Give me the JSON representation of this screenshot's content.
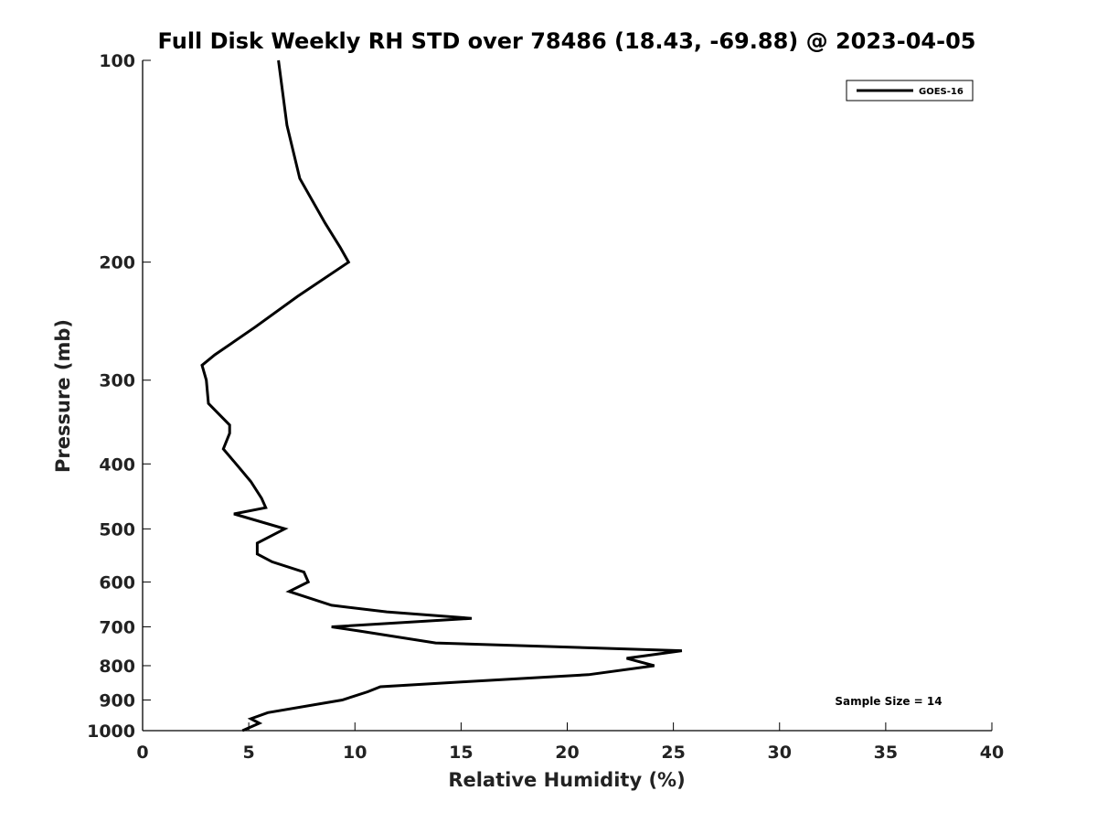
{
  "chart_data": {
    "type": "line",
    "title": "Full Disk Weekly RH STD over 78486 (18.43, -69.88) @ 2023-04-05",
    "xlabel": "Relative Humidity (%)",
    "ylabel": "Pressure (mb)",
    "xlim": [
      0,
      40
    ],
    "ylim": [
      100,
      1000
    ],
    "y_scale": "log",
    "y_reversed": true,
    "x_ticks": [
      0,
      5,
      10,
      15,
      20,
      25,
      30,
      35,
      40
    ],
    "y_ticks": [
      100,
      200,
      300,
      400,
      500,
      600,
      700,
      800,
      900,
      1000
    ],
    "grid": false,
    "legend_position": "top-right",
    "annotation": "Sample Size = 14",
    "series": [
      {
        "name": "GOES-16",
        "color": "#000000",
        "points": [
          [
            6.4,
            100
          ],
          [
            6.8,
            125
          ],
          [
            7.4,
            150
          ],
          [
            8.6,
            175
          ],
          [
            9.3,
            190
          ],
          [
            9.7,
            200
          ],
          [
            7.3,
            225
          ],
          [
            5.3,
            250
          ],
          [
            3.4,
            275
          ],
          [
            2.8,
            285
          ],
          [
            3.0,
            300
          ],
          [
            3.1,
            325
          ],
          [
            4.1,
            350
          ],
          [
            4.1,
            360
          ],
          [
            3.8,
            380
          ],
          [
            4.4,
            400
          ],
          [
            5.1,
            425
          ],
          [
            5.6,
            450
          ],
          [
            5.8,
            465
          ],
          [
            4.3,
            475
          ],
          [
            6.7,
            500
          ],
          [
            5.4,
            525
          ],
          [
            5.4,
            545
          ],
          [
            6.1,
            560
          ],
          [
            7.6,
            580
          ],
          [
            7.8,
            600
          ],
          [
            6.9,
            620
          ],
          [
            8.9,
            650
          ],
          [
            11.5,
            665
          ],
          [
            15.5,
            680
          ],
          [
            8.9,
            700
          ],
          [
            10.2,
            710
          ],
          [
            13.8,
            740
          ],
          [
            25.4,
            760
          ],
          [
            22.8,
            780
          ],
          [
            24.1,
            800
          ],
          [
            21.0,
            825
          ],
          [
            15.3,
            845
          ],
          [
            11.2,
            860
          ],
          [
            10.6,
            875
          ],
          [
            9.4,
            900
          ],
          [
            5.9,
            940
          ],
          [
            5.1,
            960
          ],
          [
            5.5,
            975
          ],
          [
            4.7,
            1000
          ]
        ]
      }
    ]
  }
}
